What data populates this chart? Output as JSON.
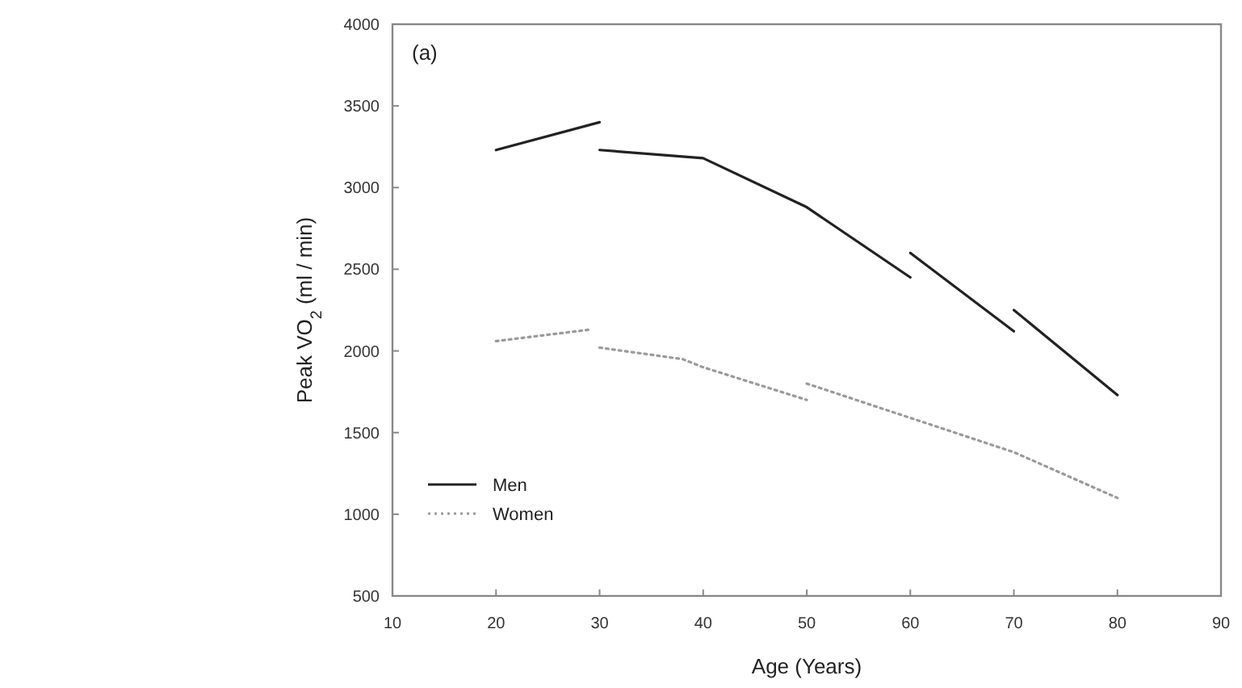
{
  "chart_data": {
    "type": "line",
    "xlabel": "Age (Years)",
    "ylabel": "Peak VO$_{2}$ (ml / min)",
    "annotations": [
      "(a)"
    ],
    "xlim": [
      10,
      90
    ],
    "xticks": [
      10,
      20,
      30,
      40,
      50,
      60,
      70,
      80,
      90
    ],
    "ylim": [
      500,
      4000
    ],
    "yticks": [
      500,
      1000,
      1500,
      2000,
      2500,
      3000,
      3500,
      4000
    ],
    "grid": false,
    "legend": "left",
    "marker": "none",
    "series": [
      {
        "name": "Men",
        "color": "#222222",
        "line_style": "solid",
        "x": [
          30,
          40,
          50,
          60
        ],
        "values": [
          3230,
          3180,
          2880,
          2450
        ]
      },
      {
        "color": "#222222",
        "line_style": "solid",
        "x": [
          20,
          30
        ],
        "values": [
          3230,
          3400
        ]
      },
      {
        "color": "#222222",
        "line_style": "solid",
        "x": [
          60,
          70
        ],
        "values": [
          2600,
          2120
        ]
      },
      {
        "color": "#222222",
        "line_style": "solid",
        "x": [
          70,
          80
        ],
        "values": [
          2250,
          1730
        ]
      },
      {
        "name": "Women",
        "color": "#9a9a9a",
        "line_style": "dotted",
        "x": [
          30,
          38,
          40,
          50
        ],
        "values": [
          2020,
          1950,
          1900,
          1700
        ]
      },
      {
        "color": "#9a9a9a",
        "line_style": "dotted",
        "x": [
          20,
          29
        ],
        "values": [
          2060,
          2130
        ]
      },
      {
        "color": "#9a9a9a",
        "line_style": "dotted",
        "x": [
          50,
          60,
          70,
          80
        ],
        "values": [
          1800,
          1590,
          1380,
          1100
        ]
      }
    ]
  }
}
